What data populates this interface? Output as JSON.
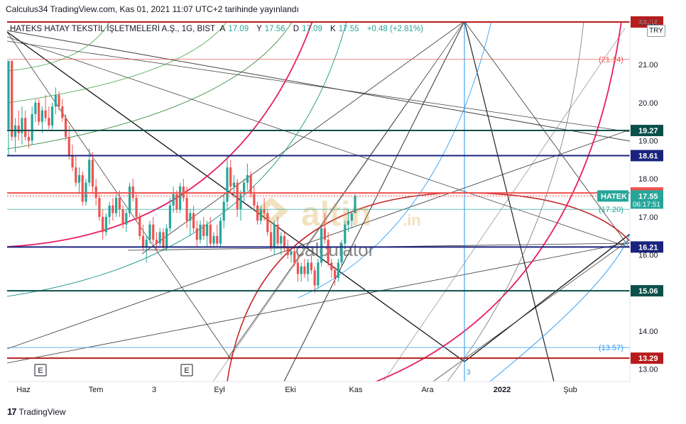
{
  "caption": "Calculus34 TradingView.com, Kas 01, 2021 11:07 UTC+2 tarihinde yayınlandı",
  "header": {
    "symbol": "HATEKS HATAY TEKSTİL İŞLETMELERİ A.Ş., 1G, BIST",
    "open_label": "A",
    "open": "17.09",
    "high_label": "Y",
    "high": "17.56",
    "low_label": "D",
    "low": "17.09",
    "close_label": "K",
    "close": "17.55",
    "change": "+0.48 (+2.81%)",
    "currency": "TRY"
  },
  "footer": {
    "logo": "17",
    "brand": "TradingView"
  },
  "watermark": {
    "brand_main": "altin",
    "brand_suffix": ".in",
    "brand_sub": "calculator"
  },
  "colors": {
    "up": "#26a69a",
    "down": "#ef5350",
    "dark_green_line": "#0b4f4a",
    "navy_line": "#1a237e",
    "dark_red_line": "#b71c1c",
    "pink_arc": "#e91e63",
    "red_arc": "#c62828",
    "blue_line": "#2196f3",
    "price_tag": "#26a69a"
  },
  "chart_data": {
    "type": "candlestick",
    "x_tick_labels": [
      "Haz",
      "Tem",
      "3",
      "Eyl",
      "Eki",
      "Kas",
      "Ara",
      "2022",
      "Şub"
    ],
    "y_tick_labels": [
      "22.12",
      "21.00",
      "20.00",
      "19.00",
      "18.00",
      "17.00",
      "16.00",
      "14.00",
      "13.00"
    ],
    "ylim": [
      12.8,
      22.2
    ],
    "horizontal_levels": [
      {
        "value": 22.12,
        "label": "22.12",
        "style": "tag",
        "color": "dark_red_line"
      },
      {
        "value": 21.14,
        "label": "(21.14)",
        "style": "text",
        "color": "down"
      },
      {
        "value": 19.27,
        "label": "19.27",
        "style": "tag",
        "color": "dark_green_line"
      },
      {
        "value": 18.61,
        "label": "18.61",
        "style": "tag",
        "color": "navy_line"
      },
      {
        "value": 17.63,
        "label": "17.63",
        "style": "tag",
        "color": "down"
      },
      {
        "value": 17.2,
        "label": "(17.20)",
        "style": "text",
        "color": "up"
      },
      {
        "value": 16.21,
        "label": "16.21",
        "style": "tag",
        "color": "navy_line"
      },
      {
        "value": 15.06,
        "label": "15.06",
        "style": "tag",
        "color": "dark_green_line"
      },
      {
        "value": 13.57,
        "label": "(13.57)",
        "style": "text",
        "color": "blue_line"
      },
      {
        "value": 13.29,
        "label": "13.29",
        "style": "tag",
        "color": "dark_red_line"
      }
    ],
    "last_price": {
      "symbol": "HATEK",
      "value": 17.55,
      "label": "17.55",
      "countdown": "06:17:51"
    },
    "vertical_marker": {
      "label": "3"
    },
    "event_markers": [
      "E",
      "E"
    ],
    "candles": [
      [
        19.3,
        21.1,
        18.6,
        21.1
      ],
      [
        21.1,
        21.1,
        19.0,
        19.1
      ],
      [
        19.1,
        19.6,
        18.7,
        19.4
      ],
      [
        19.4,
        19.8,
        19.0,
        19.2
      ],
      [
        19.2,
        19.9,
        18.9,
        19.6
      ],
      [
        19.6,
        19.8,
        19.0,
        19.1
      ],
      [
        19.1,
        19.3,
        18.8,
        19.0
      ],
      [
        19.0,
        19.9,
        18.9,
        19.7
      ],
      [
        19.7,
        20.1,
        19.5,
        20.0
      ],
      [
        20.0,
        20.1,
        19.4,
        19.5
      ],
      [
        19.5,
        19.9,
        19.2,
        19.8
      ],
      [
        19.8,
        20.2,
        19.5,
        19.6
      ],
      [
        19.6,
        19.9,
        19.3,
        19.4
      ],
      [
        19.4,
        20.0,
        19.3,
        19.9
      ],
      [
        19.9,
        20.4,
        19.7,
        20.2
      ],
      [
        20.2,
        20.3,
        19.8,
        19.9
      ],
      [
        19.9,
        20.1,
        19.5,
        19.6
      ],
      [
        19.6,
        19.7,
        19.0,
        19.1
      ],
      [
        19.1,
        19.4,
        18.5,
        18.6
      ],
      [
        18.6,
        18.9,
        18.2,
        18.3
      ],
      [
        18.3,
        18.6,
        17.8,
        17.9
      ],
      [
        17.9,
        18.3,
        17.6,
        18.1
      ],
      [
        18.1,
        18.2,
        17.3,
        17.4
      ],
      [
        17.4,
        18.0,
        17.3,
        17.9
      ],
      [
        17.9,
        18.8,
        17.8,
        18.5
      ],
      [
        18.5,
        18.7,
        17.6,
        17.8
      ],
      [
        17.8,
        18.0,
        17.3,
        17.5
      ],
      [
        17.5,
        17.6,
        16.9,
        17.0
      ],
      [
        17.0,
        17.2,
        16.4,
        16.6
      ],
      [
        16.6,
        17.1,
        16.5,
        17.0
      ],
      [
        17.0,
        17.4,
        16.8,
        17.3
      ],
      [
        17.3,
        17.5,
        16.9,
        17.1
      ],
      [
        17.1,
        17.6,
        17.0,
        17.5
      ],
      [
        17.5,
        17.7,
        17.0,
        17.2
      ],
      [
        17.2,
        17.3,
        16.7,
        16.8
      ],
      [
        16.8,
        17.2,
        16.6,
        17.1
      ],
      [
        17.1,
        17.9,
        17.0,
        17.8
      ],
      [
        17.8,
        18.0,
        17.4,
        17.5
      ],
      [
        17.5,
        17.6,
        16.9,
        17.0
      ],
      [
        17.0,
        17.1,
        16.4,
        16.5
      ],
      [
        16.5,
        16.8,
        16.1,
        16.2
      ],
      [
        16.2,
        16.5,
        15.8,
        16.4
      ],
      [
        16.4,
        16.9,
        16.3,
        16.8
      ],
      [
        16.8,
        17.0,
        16.3,
        16.4
      ],
      [
        16.4,
        16.6,
        16.1,
        16.3
      ],
      [
        16.3,
        16.7,
        16.2,
        16.6
      ],
      [
        16.6,
        16.7,
        16.1,
        16.2
      ],
      [
        16.2,
        16.8,
        16.1,
        16.7
      ],
      [
        16.7,
        17.5,
        16.6,
        17.3
      ],
      [
        17.3,
        17.8,
        17.1,
        17.6
      ],
      [
        17.6,
        17.7,
        17.1,
        17.2
      ],
      [
        17.2,
        17.9,
        17.1,
        17.8
      ],
      [
        17.8,
        18.0,
        17.4,
        17.5
      ],
      [
        17.5,
        17.8,
        16.7,
        16.9
      ],
      [
        16.9,
        17.2,
        16.5,
        17.1
      ],
      [
        17.1,
        17.3,
        16.6,
        16.7
      ],
      [
        16.7,
        16.9,
        16.2,
        16.4
      ],
      [
        16.4,
        16.9,
        16.3,
        16.8
      ],
      [
        16.8,
        17.0,
        16.4,
        16.5
      ],
      [
        16.5,
        16.9,
        16.2,
        16.8
      ],
      [
        16.8,
        17.0,
        16.2,
        16.3
      ],
      [
        16.3,
        16.6,
        16.2,
        16.5
      ],
      [
        16.5,
        16.8,
        16.2,
        16.3
      ],
      [
        16.3,
        17.0,
        16.2,
        16.9
      ],
      [
        16.9,
        17.6,
        16.7,
        17.4
      ],
      [
        17.4,
        18.6,
        17.2,
        18.3
      ],
      [
        18.3,
        18.5,
        17.6,
        17.8
      ],
      [
        17.8,
        18.1,
        17.5,
        17.9
      ],
      [
        17.9,
        18.0,
        17.0,
        17.2
      ],
      [
        17.2,
        17.7,
        16.9,
        17.6
      ],
      [
        17.6,
        18.0,
        17.4,
        17.9
      ],
      [
        17.9,
        18.4,
        17.7,
        18.1
      ],
      [
        18.1,
        18.2,
        17.5,
        17.6
      ],
      [
        17.6,
        17.8,
        17.2,
        17.3
      ],
      [
        17.3,
        17.4,
        16.8,
        16.9
      ],
      [
        16.9,
        17.3,
        16.8,
        17.2
      ],
      [
        17.2,
        17.5,
        16.9,
        17.1
      ],
      [
        17.1,
        17.2,
        16.5,
        16.6
      ],
      [
        16.6,
        16.8,
        16.1,
        16.2
      ],
      [
        16.2,
        16.9,
        16.0,
        16.8
      ],
      [
        16.8,
        17.0,
        16.2,
        16.3
      ],
      [
        16.3,
        16.6,
        16.0,
        16.5
      ],
      [
        16.5,
        16.6,
        16.1,
        16.2
      ],
      [
        16.2,
        16.4,
        15.9,
        16.0
      ],
      [
        16.0,
        16.2,
        15.8,
        16.1
      ],
      [
        16.1,
        16.2,
        15.7,
        15.8
      ],
      [
        15.8,
        16.0,
        15.3,
        15.5
      ],
      [
        15.5,
        15.8,
        15.3,
        15.7
      ],
      [
        15.7,
        15.9,
        15.4,
        15.5
      ],
      [
        15.5,
        15.9,
        15.3,
        15.8
      ],
      [
        15.8,
        16.0,
        15.5,
        15.6
      ],
      [
        15.6,
        15.7,
        15.0,
        15.2
      ],
      [
        15.2,
        15.9,
        15.1,
        15.8
      ],
      [
        15.8,
        16.8,
        15.7,
        16.7
      ],
      [
        16.7,
        17.1,
        16.3,
        16.4
      ],
      [
        16.4,
        16.6,
        15.7,
        15.8
      ],
      [
        15.8,
        15.9,
        15.4,
        15.6
      ],
      [
        15.6,
        15.7,
        15.2,
        15.4
      ],
      [
        15.4,
        15.9,
        15.3,
        15.8
      ],
      [
        15.8,
        16.4,
        15.7,
        16.3
      ],
      [
        16.3,
        16.9,
        16.2,
        16.8
      ],
      [
        16.8,
        17.2,
        16.6,
        16.9
      ],
      [
        16.9,
        17.1,
        16.7,
        17.1
      ],
      [
        17.1,
        17.6,
        17.1,
        17.55
      ]
    ]
  }
}
